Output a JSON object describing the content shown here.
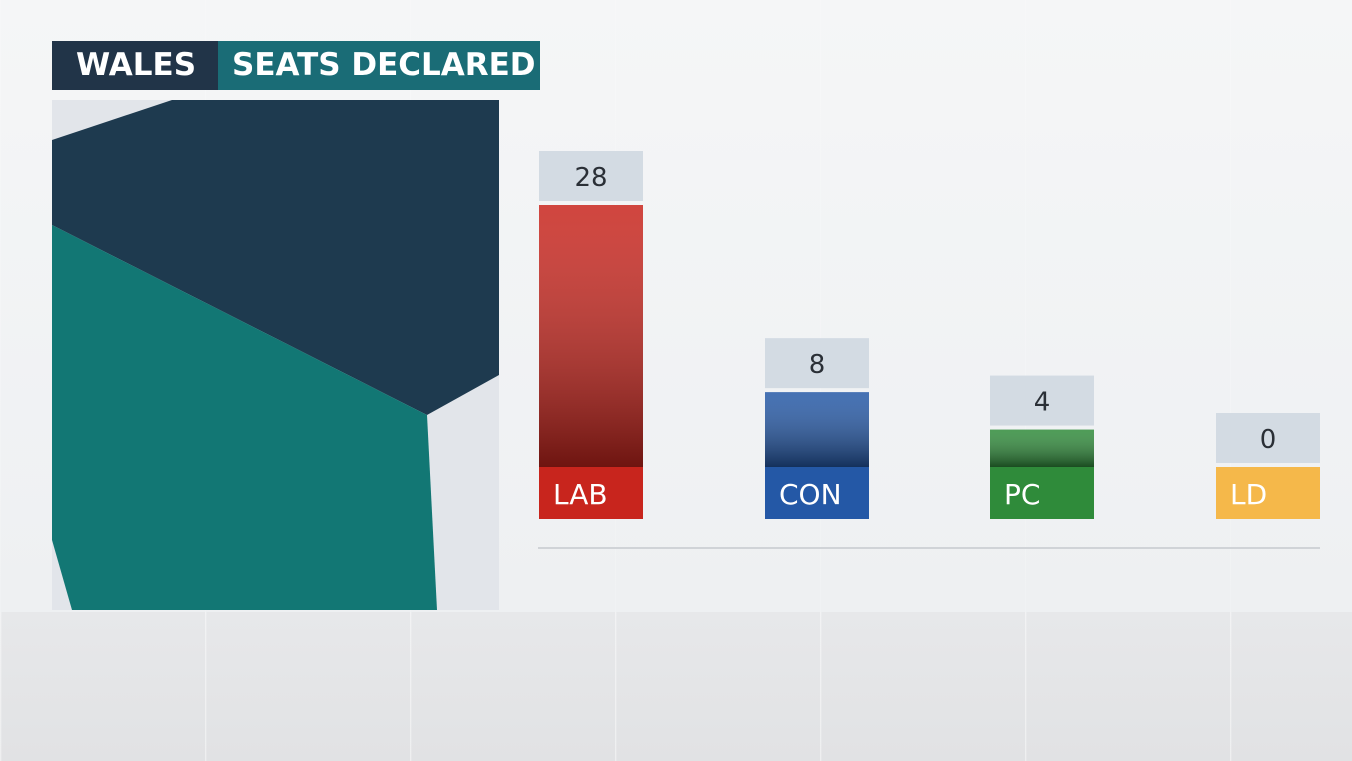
{
  "header": {
    "region": "WALES",
    "label": "SEATS DECLARED"
  },
  "colors": {
    "region_bg": "#213448",
    "label_bg": "#1a6c76",
    "map_dark": "#1e3a4f",
    "map_teal": "#127774",
    "map_light": "#e2e5ea",
    "value_box": "#d3dbe3"
  },
  "chart_data": {
    "type": "bar",
    "categories": [
      "LAB",
      "CON",
      "PC",
      "LD"
    ],
    "values": [
      28,
      8,
      4,
      0
    ],
    "colors": [
      "#c8251d",
      "#2458a6",
      "#2f8b3a",
      "#f5b84a"
    ],
    "ylim": [
      0,
      28
    ],
    "grid": false,
    "legend": "none"
  }
}
